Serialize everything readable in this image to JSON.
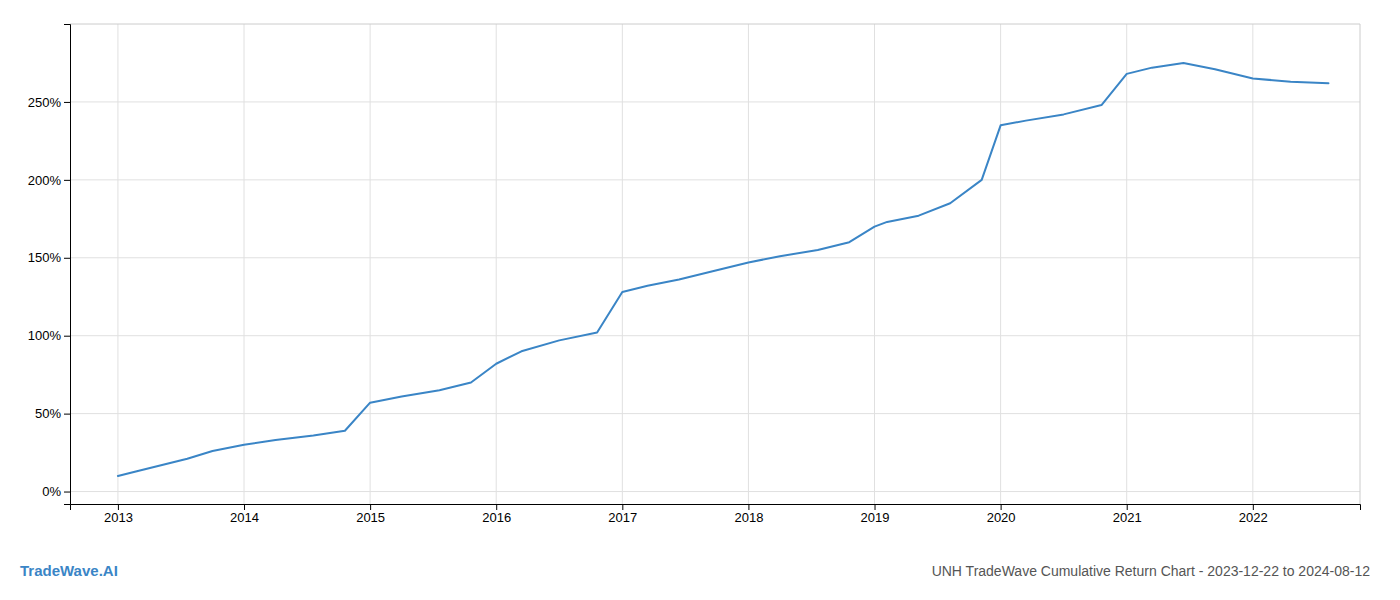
{
  "chart_data": {
    "type": "line",
    "title": "UNH TradeWave Cumulative Return Chart - 2023-12-22 to 2024-08-12",
    "annotations": [
      "TradeWave.AI"
    ],
    "color": "#3a85c6",
    "grid": true,
    "x": [
      2013.0,
      2013.15,
      2013.35,
      2013.55,
      2013.75,
      2014.0,
      2014.25,
      2014.55,
      2014.8,
      2015.0,
      2015.25,
      2015.55,
      2015.8,
      2016.0,
      2016.2,
      2016.5,
      2016.8,
      2017.0,
      2017.2,
      2017.45,
      2017.7,
      2018.0,
      2018.25,
      2018.55,
      2018.8,
      2019.0,
      2019.1,
      2019.35,
      2019.6,
      2019.85,
      2020.0,
      2020.2,
      2020.5,
      2020.8,
      2021.0,
      2021.2,
      2021.45,
      2021.7,
      2022.0,
      2022.3,
      2022.6
    ],
    "values": [
      10,
      13,
      17,
      21,
      26,
      30,
      33,
      36,
      39,
      57,
      61,
      65,
      70,
      82,
      90,
      97,
      102,
      128,
      132,
      136,
      141,
      147,
      151,
      155,
      160,
      170,
      173,
      177,
      185,
      200,
      235,
      238,
      242,
      248,
      268,
      272,
      275,
      271,
      265,
      263,
      262
    ],
    "xlim": [
      2012.62,
      2022.85
    ],
    "xticks": [
      2013,
      2014,
      2015,
      2016,
      2017,
      2018,
      2019,
      2020,
      2021,
      2022
    ],
    "ylim": [
      -8,
      300
    ],
    "yticks": [
      {
        "value": 0,
        "label": "0%"
      },
      {
        "value": 50,
        "label": "50%"
      },
      {
        "value": 100,
        "label": "100%"
      },
      {
        "value": 150,
        "label": "150%"
      },
      {
        "value": 200,
        "label": "200%"
      },
      {
        "value": 250,
        "label": "250%"
      }
    ]
  }
}
